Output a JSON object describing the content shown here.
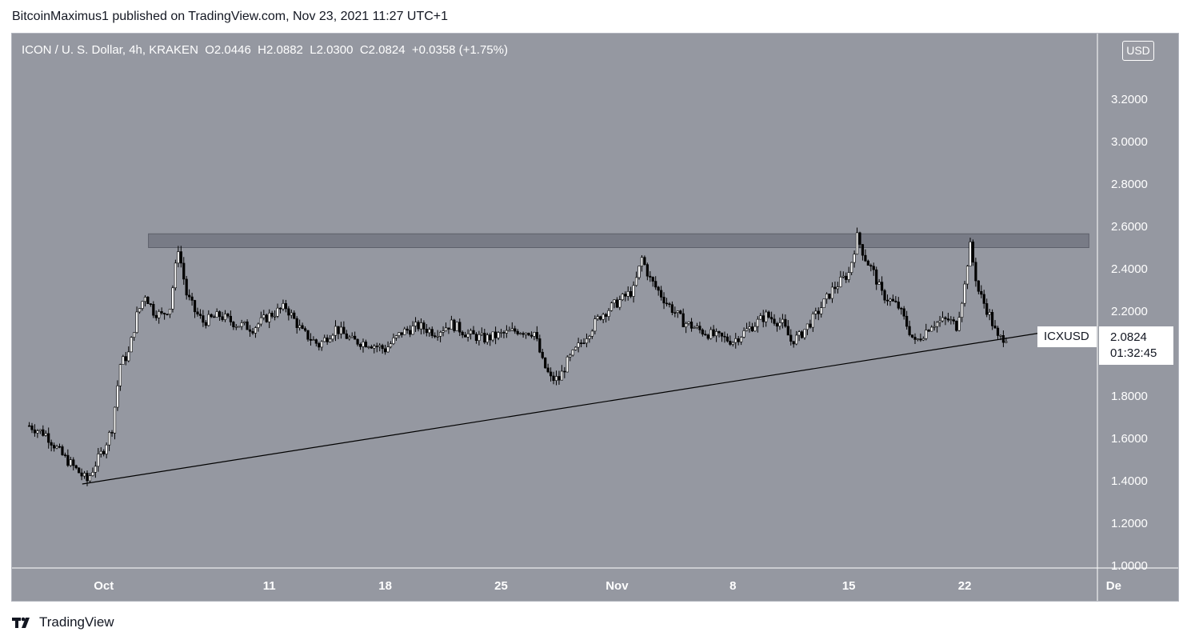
{
  "header": {
    "publisher_line": "BitcoinMaximus1 published on TradingView.com, Nov 23, 2021 11:27 UTC+1"
  },
  "legend": {
    "symbol": "ICON / U. S. Dollar, 4h, KRAKEN",
    "open_label": "O",
    "open": "2.0446",
    "high_label": "H",
    "high": "2.0882",
    "low_label": "L",
    "low": "2.0300",
    "close_label": "C",
    "close": "2.0824",
    "change": "+0.0358 (+1.75%)"
  },
  "currency_badge": "USD",
  "last_price": {
    "ticker": "ICXUSD",
    "price": "2.0824",
    "countdown": "01:32:45"
  },
  "footer": {
    "brand": "TradingView"
  },
  "colors": {
    "plot_bg": "#9598a1",
    "candle": "#000000",
    "candle_up_body": "#ffffff",
    "resistance_zone": "#787b86",
    "support_line": "#000000",
    "axis_text": "#ffffff"
  },
  "chart_data": {
    "type": "candlestick",
    "timeframe": "4h",
    "y_axis": {
      "ticks": [
        "3.2000",
        "3.0000",
        "2.8000",
        "2.6000",
        "2.4000",
        "2.2000",
        "2.0000",
        "1.8000",
        "1.6000",
        "1.4000",
        "1.2000",
        "1.0000"
      ],
      "ylim": [
        1.0,
        3.4
      ]
    },
    "x_axis": {
      "ticks": [
        {
          "label": "Oct",
          "day": 1
        },
        {
          "label": "11",
          "day": 11
        },
        {
          "label": "18",
          "day": 18
        },
        {
          "label": "25",
          "day": 25
        },
        {
          "label": "Nov",
          "day": 32
        },
        {
          "label": "8",
          "day": 39
        },
        {
          "label": "15",
          "day": 46
        },
        {
          "label": "22",
          "day": 53
        },
        {
          "label": "De",
          "day": 62
        }
      ]
    },
    "price_path": [
      [
        -3.5,
        1.66
      ],
      [
        -2.5,
        1.62
      ],
      [
        -1.5,
        1.52
      ],
      [
        -0.5,
        1.44
      ],
      [
        0.0,
        1.4
      ],
      [
        0.5,
        1.48
      ],
      [
        1.0,
        1.55
      ],
      [
        1.5,
        1.65
      ],
      [
        2.0,
        1.95
      ],
      [
        2.5,
        2.0
      ],
      [
        3.0,
        2.18
      ],
      [
        3.5,
        2.28
      ],
      [
        4.0,
        2.2
      ],
      [
        4.5,
        2.18
      ],
      [
        5.0,
        2.22
      ],
      [
        5.5,
        2.5
      ],
      [
        6.0,
        2.28
      ],
      [
        6.5,
        2.2
      ],
      [
        7.0,
        2.15
      ],
      [
        8.0,
        2.18
      ],
      [
        9.0,
        2.14
      ],
      [
        10.0,
        2.12
      ],
      [
        11.0,
        2.18
      ],
      [
        12.0,
        2.22
      ],
      [
        13.0,
        2.1
      ],
      [
        14.0,
        2.04
      ],
      [
        15.0,
        2.12
      ],
      [
        16.0,
        2.06
      ],
      [
        17.0,
        2.05
      ],
      [
        18.0,
        2.02
      ],
      [
        19.0,
        2.1
      ],
      [
        20.0,
        2.13
      ],
      [
        21.0,
        2.1
      ],
      [
        22.0,
        2.14
      ],
      [
        23.0,
        2.09
      ],
      [
        24.0,
        2.07
      ],
      [
        25.0,
        2.09
      ],
      [
        26.0,
        2.11
      ],
      [
        27.0,
        2.1
      ],
      [
        27.5,
        1.96
      ],
      [
        28.0,
        1.88
      ],
      [
        28.5,
        1.88
      ],
      [
        29.0,
        1.96
      ],
      [
        30.0,
        2.07
      ],
      [
        31.0,
        2.18
      ],
      [
        32.0,
        2.24
      ],
      [
        33.0,
        2.3
      ],
      [
        33.5,
        2.45
      ],
      [
        34.0,
        2.35
      ],
      [
        35.0,
        2.24
      ],
      [
        36.0,
        2.15
      ],
      [
        37.0,
        2.11
      ],
      [
        38.0,
        2.08
      ],
      [
        39.0,
        2.06
      ],
      [
        40.0,
        2.12
      ],
      [
        41.0,
        2.18
      ],
      [
        42.0,
        2.14
      ],
      [
        42.5,
        2.06
      ],
      [
        43.0,
        2.08
      ],
      [
        44.0,
        2.18
      ],
      [
        45.0,
        2.3
      ],
      [
        46.0,
        2.38
      ],
      [
        46.5,
        2.55
      ],
      [
        47.0,
        2.45
      ],
      [
        47.5,
        2.38
      ],
      [
        48.0,
        2.28
      ],
      [
        49.0,
        2.22
      ],
      [
        50.0,
        2.05
      ],
      [
        51.0,
        2.14
      ],
      [
        52.0,
        2.16
      ],
      [
        52.5,
        2.13
      ],
      [
        53.0,
        2.32
      ],
      [
        53.3,
        2.52
      ],
      [
        53.8,
        2.3
      ],
      [
        54.5,
        2.18
      ],
      [
        55.0,
        2.07
      ],
      [
        55.5,
        2.08
      ]
    ],
    "resistance_zone": {
      "x_start": 3.7,
      "x_end": 60.5,
      "y_low": 2.5,
      "y_high": 2.565
    },
    "support_line": {
      "x_start": -0.3,
      "y_start": 1.385,
      "x_end": 59.0,
      "y_end": 2.115
    },
    "last_price": 2.0824,
    "legend_placement": "top-left",
    "grid": false
  }
}
